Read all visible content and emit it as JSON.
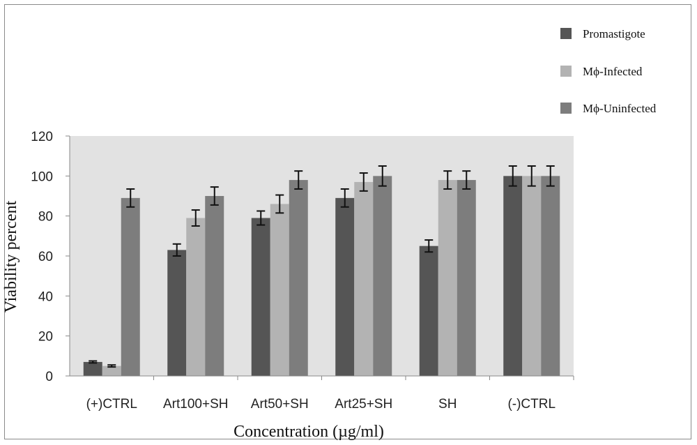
{
  "chart_data": {
    "type": "bar",
    "title": "",
    "xlabel": "Concentration (µg/ml)",
    "ylabel": "Viability percent",
    "ylim": [
      0,
      120
    ],
    "yticks": [
      0,
      20,
      40,
      60,
      80,
      100,
      120
    ],
    "grid": false,
    "legend_position": "top-right",
    "categories": [
      "(+)CTRL",
      "Art100+SH",
      "Art50+SH",
      "Art25+SH",
      "SH",
      "(-)CTRL"
    ],
    "series": [
      {
        "name": "Promastigote",
        "color": "#555555",
        "values": [
          7,
          63,
          79,
          89,
          65,
          100
        ],
        "errors": [
          0.5,
          3,
          3.5,
          4.5,
          3,
          5
        ]
      },
      {
        "name": "Mϕ-Infected",
        "color": "#b3b3b3",
        "values": [
          5,
          79,
          86,
          97,
          98,
          100
        ],
        "errors": [
          0.5,
          4,
          4.5,
          4.5,
          4.5,
          5
        ]
      },
      {
        "name": "Mϕ-Uninfected",
        "color": "#7d7d7d",
        "values": [
          89,
          90,
          98,
          100,
          98,
          100
        ],
        "errors": [
          4.5,
          4.5,
          4.5,
          5,
          4.5,
          5
        ]
      }
    ],
    "plot_area_color": "#e2e2e2"
  }
}
